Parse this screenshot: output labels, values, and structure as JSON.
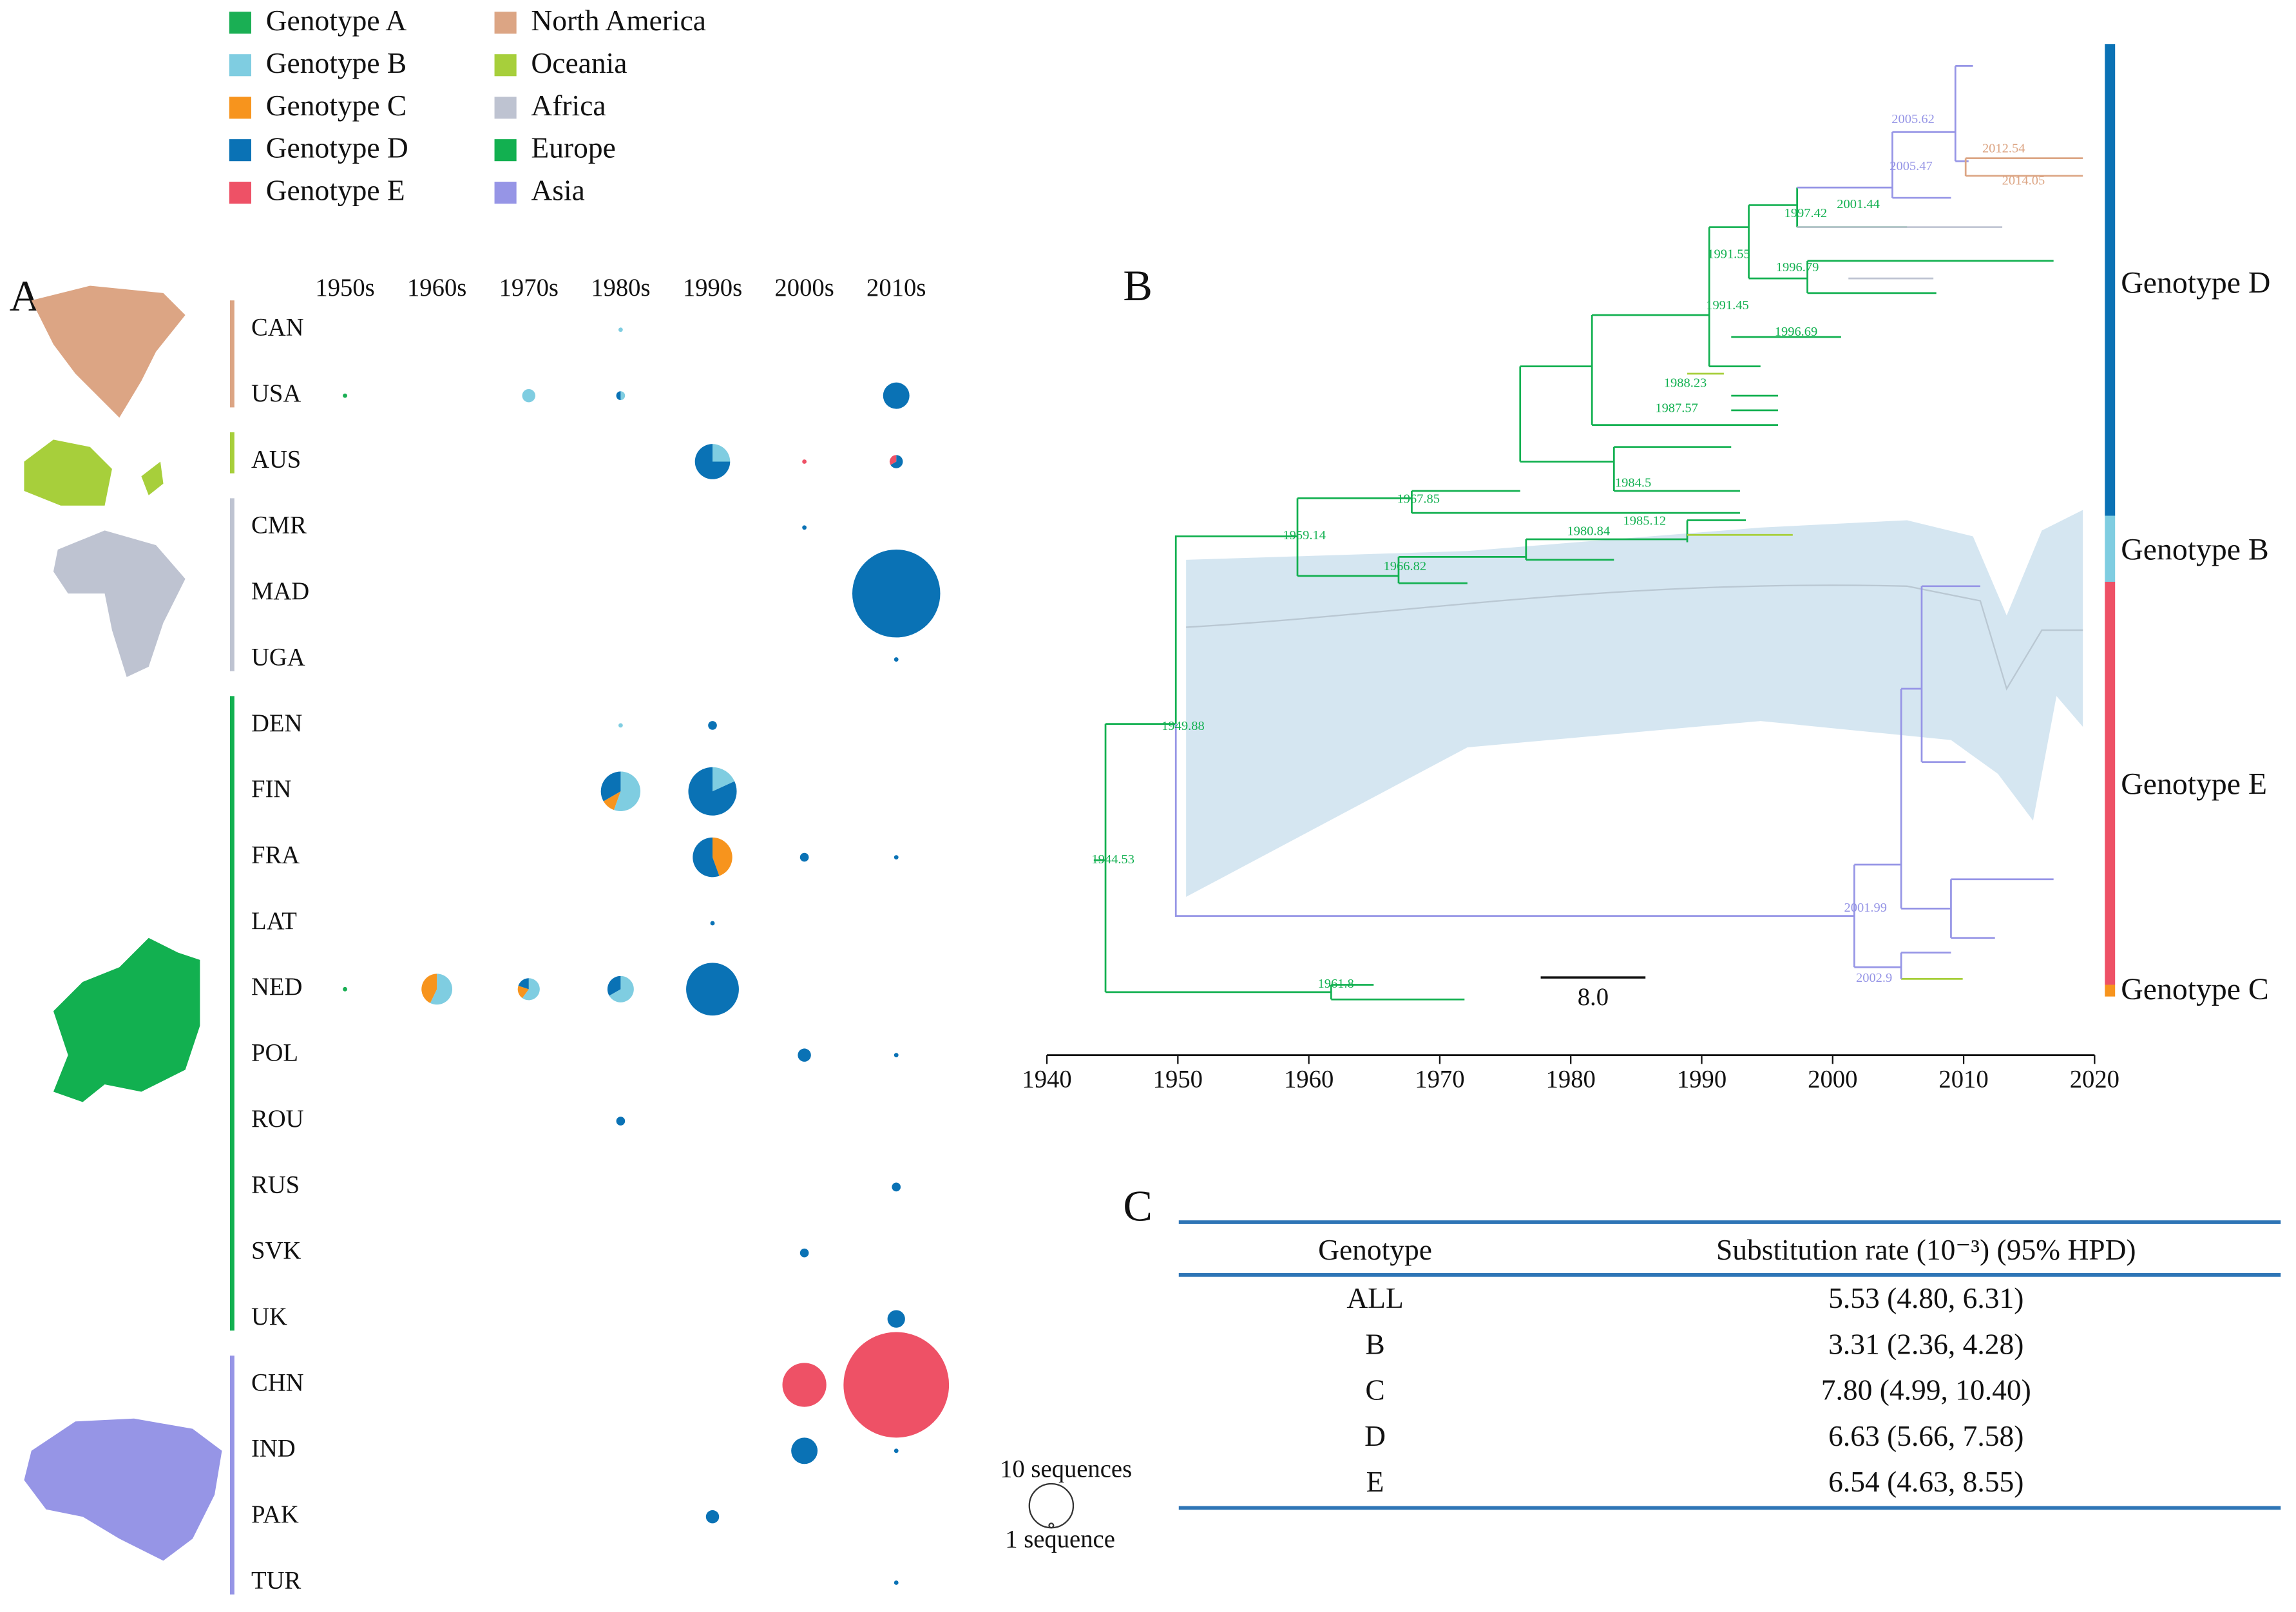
{
  "legend": {
    "genotypes": [
      {
        "name": "Genotype A",
        "color": "#1aaf54"
      },
      {
        "name": "Genotype B",
        "color": "#7fcde1"
      },
      {
        "name": "Genotype C",
        "color": "#f7941d"
      },
      {
        "name": "Genotype D",
        "color": "#0a72b5"
      },
      {
        "name": "Genotype E",
        "color": "#ee5166"
      }
    ],
    "regions": [
      {
        "name": "North America",
        "color": "#dca584"
      },
      {
        "name": "Oceania",
        "color": "#a7cf3b"
      },
      {
        "name": "Africa",
        "color": "#bec3d1"
      },
      {
        "name": "Europe",
        "color": "#12b050"
      },
      {
        "name": "Asia",
        "color": "#9695e6"
      }
    ]
  },
  "panel_a": {
    "label": "A",
    "decades": [
      "1950s",
      "1960s",
      "1970s",
      "1980s",
      "1990s",
      "2000s",
      "2010s"
    ],
    "groups": [
      [
        "CAN",
        "USA"
      ],
      [
        "AUS"
      ],
      [
        "CMR",
        "MAD",
        "UGA"
      ],
      [
        "DEN",
        "FIN",
        "FRA",
        "LAT",
        "NED",
        "POL",
        "ROU",
        "RUS",
        "SVK",
        "UK"
      ],
      [
        "CHN",
        "IND",
        "PAK",
        "TUR"
      ]
    ],
    "bubbles": [
      {
        "country": "CAN",
        "decade": "1980s",
        "counts": [
          0,
          1,
          0,
          0,
          0
        ]
      },
      {
        "country": "USA",
        "decade": "1950s",
        "counts": [
          1,
          0,
          0,
          0,
          0
        ]
      },
      {
        "country": "USA",
        "decade": "1970s",
        "counts": [
          0,
          3,
          0,
          0,
          0
        ]
      },
      {
        "country": "USA",
        "decade": "1980s",
        "counts": [
          0,
          1,
          0,
          1,
          0
        ]
      },
      {
        "country": "USA",
        "decade": "2010s",
        "counts": [
          0,
          0,
          0,
          6,
          0
        ]
      },
      {
        "country": "AUS",
        "decade": "1990s",
        "counts": [
          0,
          2,
          0,
          6,
          0
        ]
      },
      {
        "country": "AUS",
        "decade": "2000s",
        "counts": [
          0,
          0,
          0,
          0,
          1
        ]
      },
      {
        "country": "AUS",
        "decade": "2010s",
        "counts": [
          0,
          0,
          0,
          2,
          1
        ]
      },
      {
        "country": "CMR",
        "decade": "2000s",
        "counts": [
          0,
          0,
          0,
          1,
          0
        ]
      },
      {
        "country": "MAD",
        "decade": "2010s",
        "counts": [
          0,
          0,
          0,
          20,
          0
        ]
      },
      {
        "country": "UGA",
        "decade": "2010s",
        "counts": [
          0,
          0,
          0,
          1,
          0
        ]
      },
      {
        "country": "DEN",
        "decade": "1980s",
        "counts": [
          0,
          1,
          0,
          0,
          0
        ]
      },
      {
        "country": "DEN",
        "decade": "1990s",
        "counts": [
          0,
          0,
          0,
          2,
          0
        ]
      },
      {
        "country": "FIN",
        "decade": "1980s",
        "counts": [
          0,
          5,
          1,
          3,
          0
        ]
      },
      {
        "country": "FIN",
        "decade": "1990s",
        "counts": [
          0,
          2,
          0,
          9,
          0
        ]
      },
      {
        "country": "FRA",
        "decade": "1990s",
        "counts": [
          0,
          0,
          4,
          5,
          0
        ]
      },
      {
        "country": "FRA",
        "decade": "2000s",
        "counts": [
          0,
          0,
          0,
          2,
          0
        ]
      },
      {
        "country": "FRA",
        "decade": "2010s",
        "counts": [
          0,
          0,
          0,
          1,
          0
        ]
      },
      {
        "country": "LAT",
        "decade": "1990s",
        "counts": [
          0,
          0,
          0,
          1,
          0
        ]
      },
      {
        "country": "NED",
        "decade": "1950s",
        "counts": [
          1,
          0,
          0,
          0,
          0
        ]
      },
      {
        "country": "NED",
        "decade": "1960s",
        "counts": [
          0,
          4,
          3,
          0,
          0
        ]
      },
      {
        "country": "NED",
        "decade": "1970s",
        "counts": [
          0,
          3,
          1,
          1,
          0
        ]
      },
      {
        "country": "NED",
        "decade": "1980s",
        "counts": [
          0,
          4,
          0,
          2,
          0
        ]
      },
      {
        "country": "NED",
        "decade": "1990s",
        "counts": [
          0,
          0,
          0,
          12,
          0
        ]
      },
      {
        "country": "POL",
        "decade": "2000s",
        "counts": [
          0,
          0,
          0,
          3,
          0
        ]
      },
      {
        "country": "POL",
        "decade": "2010s",
        "counts": [
          0,
          0,
          0,
          1,
          0
        ]
      },
      {
        "country": "ROU",
        "decade": "1980s",
        "counts": [
          0,
          0,
          0,
          2,
          0
        ]
      },
      {
        "country": "RUS",
        "decade": "2010s",
        "counts": [
          0,
          0,
          0,
          2,
          0
        ]
      },
      {
        "country": "SVK",
        "decade": "2000s",
        "counts": [
          0,
          0,
          0,
          2,
          0
        ]
      },
      {
        "country": "UK",
        "decade": "2010s",
        "counts": [
          0,
          0,
          0,
          4,
          0
        ]
      },
      {
        "country": "CHN",
        "decade": "2000s",
        "counts": [
          0,
          0,
          0,
          0,
          10
        ]
      },
      {
        "country": "CHN",
        "decade": "2010s",
        "counts": [
          0,
          0,
          0,
          0,
          24
        ]
      },
      {
        "country": "IND",
        "decade": "2000s",
        "counts": [
          0,
          0,
          0,
          6,
          0
        ]
      },
      {
        "country": "IND",
        "decade": "2010s",
        "counts": [
          0,
          0,
          0,
          1,
          0
        ]
      },
      {
        "country": "PAK",
        "decade": "1990s",
        "counts": [
          0,
          0,
          0,
          3,
          0
        ]
      },
      {
        "country": "TUR",
        "decade": "2010s",
        "counts": [
          0,
          0,
          0,
          1,
          0
        ]
      }
    ],
    "size_legend": [
      {
        "value": 10,
        "label": "10 sequences"
      },
      {
        "value": 1,
        "label": "1 sequence"
      }
    ]
  },
  "panel_b": {
    "label": "B",
    "xlim": [
      1940,
      2020
    ],
    "xticks": [
      1940,
      1950,
      1960,
      1970,
      1980,
      1990,
      2000,
      2010,
      2020
    ],
    "scale_bar": {
      "value": 8,
      "label": "8.0"
    },
    "nodes": [
      "1944.53",
      "1949.88",
      "1959.14",
      "1961.8",
      "1966.82",
      "1967.85",
      "1980.84",
      "1984.5",
      "1985.12",
      "1987.57",
      "1988.23",
      "1991.45",
      "1991.55",
      "1996.69",
      "1996.79",
      "1997.42",
      "2001.44",
      "2005.47",
      "2005.62",
      "2012.54",
      "2014.05",
      "2001.99",
      "2002.9"
    ],
    "clades": [
      "Genotype D",
      "Genotype B",
      "Genotype E",
      "Genotype C"
    ]
  },
  "panel_c": {
    "label": "C",
    "header": [
      "Genotype",
      "Substitution rate (10⁻³) (95% HPD)"
    ],
    "rows": [
      [
        "ALL",
        "5.53 (4.80, 6.31)"
      ],
      [
        "B",
        "3.31 (2.36, 4.28)"
      ],
      [
        "C",
        "7.80 (4.99, 10.40)"
      ],
      [
        "D",
        "6.63 (5.66, 7.58)"
      ],
      [
        "E",
        "6.54 (4.63, 8.55)"
      ]
    ]
  }
}
